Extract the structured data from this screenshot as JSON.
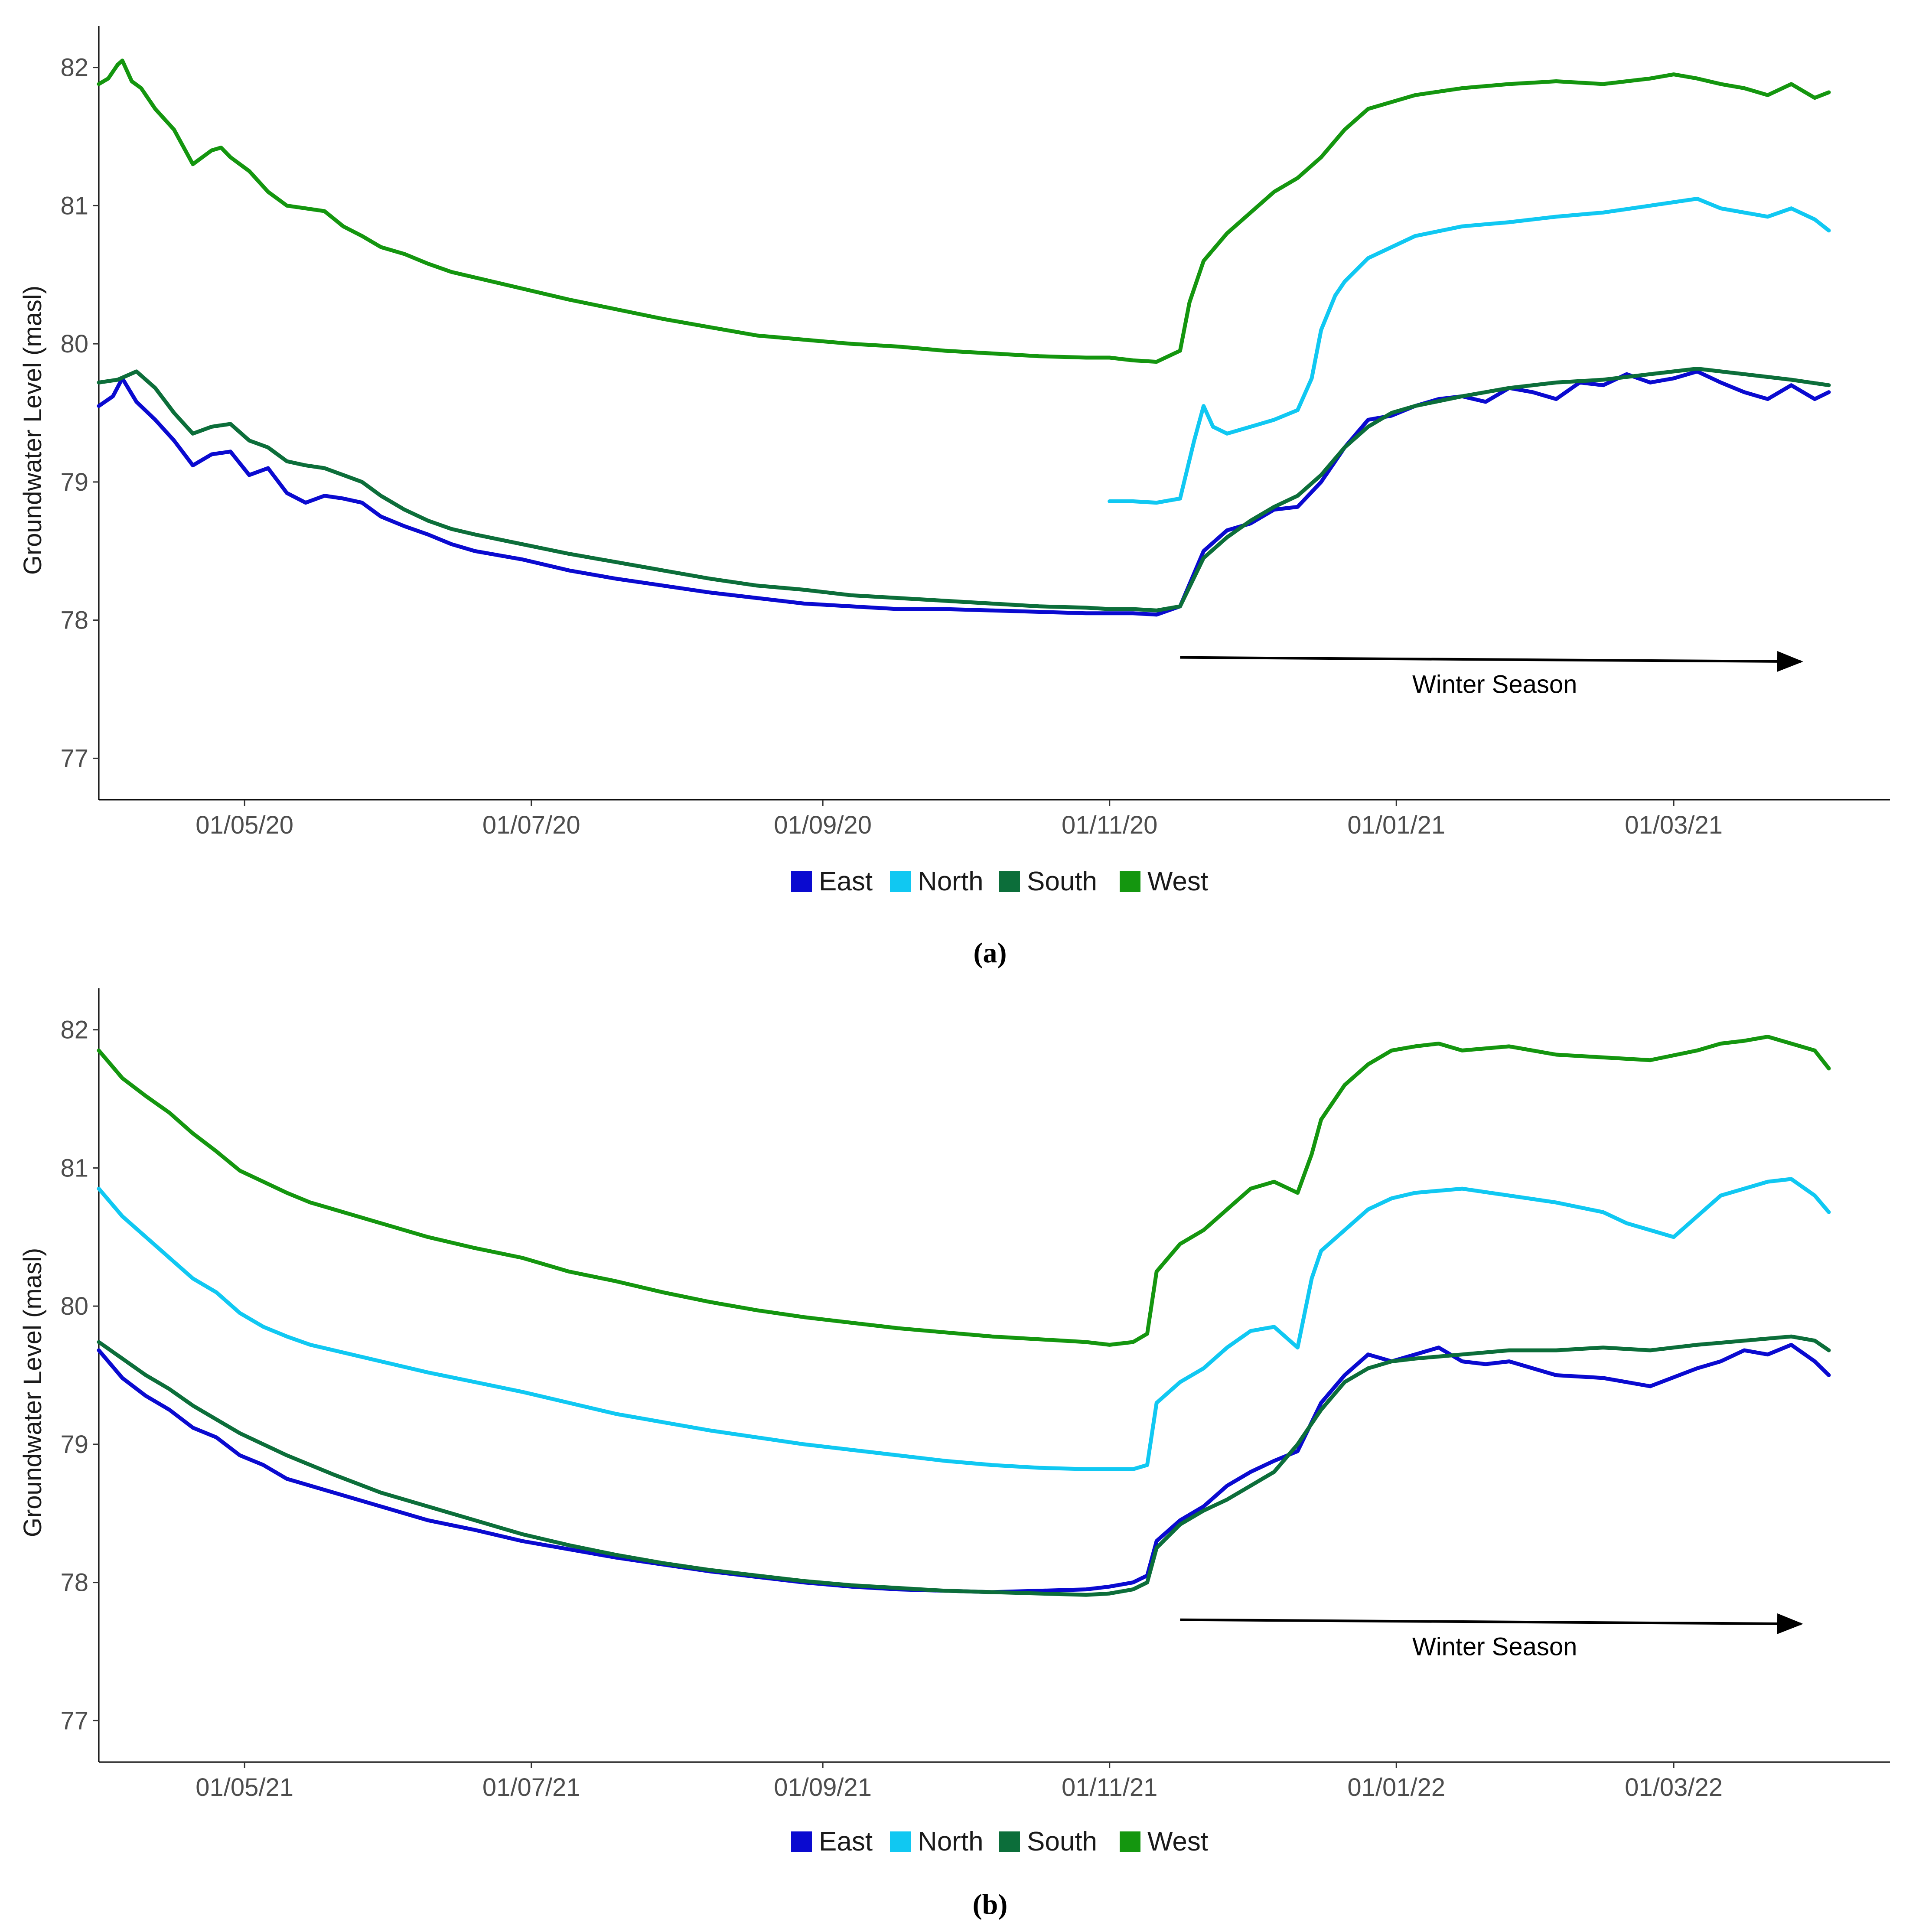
{
  "chart_data": [
    {
      "type": "line",
      "panel_label": "(a)",
      "ylabel": "Groundwater Level (masl)",
      "xlabel": "",
      "ylim": [
        76.7,
        82.3
      ],
      "yticks": [
        77,
        78,
        79,
        80,
        81,
        82
      ],
      "x_domain_days": [
        0,
        381
      ],
      "xticks": [
        {
          "day": 31,
          "label": "01/05/20"
        },
        {
          "day": 92,
          "label": "01/07/20"
        },
        {
          "day": 154,
          "label": "01/09/20"
        },
        {
          "day": 215,
          "label": "01/11/20"
        },
        {
          "day": 276,
          "label": "01/01/21"
        },
        {
          "day": 335,
          "label": "01/03/21"
        }
      ],
      "annotation": {
        "text": "Winter Season",
        "from_day": 230,
        "to_day": 362,
        "y_start": 77.73,
        "y_end": 77.7
      },
      "series": [
        {
          "name": "East",
          "color": "#0a0ad0",
          "x": [
            0,
            3,
            5,
            8,
            12,
            16,
            20,
            24,
            28,
            32,
            36,
            40,
            44,
            48,
            52,
            56,
            60,
            65,
            70,
            75,
            80,
            90,
            100,
            110,
            120,
            130,
            140,
            150,
            160,
            170,
            180,
            190,
            200,
            210,
            215,
            220,
            225,
            230,
            235,
            240,
            245,
            250,
            255,
            260,
            265,
            270,
            275,
            280,
            285,
            290,
            295,
            300,
            305,
            310,
            315,
            320,
            325,
            330,
            335,
            340,
            345,
            350,
            355,
            360,
            365,
            368
          ],
          "values": [
            79.55,
            79.62,
            79.75,
            79.58,
            79.45,
            79.3,
            79.12,
            79.2,
            79.22,
            79.05,
            79.1,
            78.92,
            78.85,
            78.9,
            78.88,
            78.85,
            78.75,
            78.68,
            78.62,
            78.55,
            78.5,
            78.44,
            78.36,
            78.3,
            78.25,
            78.2,
            78.16,
            78.12,
            78.1,
            78.08,
            78.08,
            78.07,
            78.06,
            78.05,
            78.05,
            78.05,
            78.04,
            78.1,
            78.5,
            78.65,
            78.7,
            78.8,
            78.82,
            79.0,
            79.25,
            79.45,
            79.48,
            79.55,
            79.6,
            79.62,
            79.58,
            79.68,
            79.65,
            79.6,
            79.72,
            79.7,
            79.78,
            79.72,
            79.75,
            79.8,
            79.72,
            79.65,
            79.6,
            79.7,
            79.6,
            79.65
          ]
        },
        {
          "name": "North",
          "color": "#10c8f2",
          "x": [
            215,
            220,
            225,
            230,
            233,
            235,
            237,
            240,
            245,
            250,
            255,
            258,
            260,
            263,
            265,
            270,
            275,
            280,
            290,
            300,
            310,
            320,
            330,
            340,
            345,
            350,
            355,
            360,
            365,
            368
          ],
          "values": [
            78.86,
            78.86,
            78.85,
            78.88,
            79.3,
            79.55,
            79.4,
            79.35,
            79.4,
            79.45,
            79.52,
            79.75,
            80.1,
            80.35,
            80.45,
            80.62,
            80.7,
            80.78,
            80.85,
            80.88,
            80.92,
            80.95,
            81.0,
            81.05,
            80.98,
            80.95,
            80.92,
            80.98,
            80.9,
            80.82
          ]
        },
        {
          "name": "South",
          "color": "#0c6e3a",
          "x": [
            0,
            4,
            8,
            12,
            16,
            20,
            24,
            28,
            32,
            36,
            40,
            44,
            48,
            52,
            56,
            60,
            65,
            70,
            75,
            80,
            90,
            100,
            110,
            120,
            130,
            140,
            150,
            160,
            170,
            180,
            190,
            200,
            210,
            215,
            220,
            225,
            230,
            235,
            240,
            245,
            250,
            255,
            260,
            265,
            270,
            275,
            280,
            290,
            300,
            310,
            320,
            330,
            340,
            350,
            360,
            368
          ],
          "values": [
            79.72,
            79.74,
            79.8,
            79.68,
            79.5,
            79.35,
            79.4,
            79.42,
            79.3,
            79.25,
            79.15,
            79.12,
            79.1,
            79.05,
            79.0,
            78.9,
            78.8,
            78.72,
            78.66,
            78.62,
            78.55,
            78.48,
            78.42,
            78.36,
            78.3,
            78.25,
            78.22,
            78.18,
            78.16,
            78.14,
            78.12,
            78.1,
            78.09,
            78.08,
            78.08,
            78.07,
            78.1,
            78.45,
            78.6,
            78.72,
            78.82,
            78.9,
            79.05,
            79.25,
            79.4,
            79.5,
            79.55,
            79.62,
            79.68,
            79.72,
            79.74,
            79.78,
            79.82,
            79.78,
            79.74,
            79.7
          ]
        },
        {
          "name": "West",
          "color": "#14960f",
          "x": [
            0,
            2,
            4,
            5,
            7,
            9,
            12,
            16,
            20,
            24,
            26,
            28,
            32,
            36,
            40,
            44,
            48,
            52,
            56,
            60,
            65,
            70,
            75,
            80,
            90,
            100,
            110,
            120,
            130,
            140,
            150,
            160,
            170,
            180,
            190,
            200,
            210,
            215,
            220,
            225,
            230,
            232,
            235,
            240,
            245,
            250,
            255,
            260,
            265,
            270,
            275,
            280,
            290,
            300,
            310,
            320,
            330,
            335,
            340,
            345,
            350,
            355,
            360,
            365,
            368
          ],
          "values": [
            81.88,
            81.92,
            82.02,
            82.05,
            81.9,
            81.85,
            81.7,
            81.55,
            81.3,
            81.4,
            81.42,
            81.35,
            81.25,
            81.1,
            81.0,
            80.98,
            80.96,
            80.85,
            80.78,
            80.7,
            80.65,
            80.58,
            80.52,
            80.48,
            80.4,
            80.32,
            80.25,
            80.18,
            80.12,
            80.06,
            80.03,
            80.0,
            79.98,
            79.95,
            79.93,
            79.91,
            79.9,
            79.9,
            79.88,
            79.87,
            79.95,
            80.3,
            80.6,
            80.8,
            80.95,
            81.1,
            81.2,
            81.35,
            81.55,
            81.7,
            81.75,
            81.8,
            81.85,
            81.88,
            81.9,
            81.88,
            81.92,
            81.95,
            81.92,
            81.88,
            81.85,
            81.8,
            81.88,
            81.78,
            81.82
          ]
        }
      ]
    },
    {
      "type": "line",
      "panel_label": "(b)",
      "ylabel": "Groundwater Level (masl)",
      "xlabel": "",
      "ylim": [
        76.7,
        82.3
      ],
      "yticks": [
        77,
        78,
        79,
        80,
        81,
        82
      ],
      "x_domain_days": [
        0,
        381
      ],
      "xticks": [
        {
          "day": 31,
          "label": "01/05/21"
        },
        {
          "day": 92,
          "label": "01/07/21"
        },
        {
          "day": 154,
          "label": "01/09/21"
        },
        {
          "day": 215,
          "label": "01/11/21"
        },
        {
          "day": 276,
          "label": "01/01/22"
        },
        {
          "day": 335,
          "label": "01/03/22"
        }
      ],
      "annotation": {
        "text": "Winter Season",
        "from_day": 230,
        "to_day": 362,
        "y_start": 77.73,
        "y_end": 77.7
      },
      "series": [
        {
          "name": "East",
          "color": "#0a0ad0",
          "x": [
            0,
            5,
            10,
            15,
            20,
            25,
            30,
            35,
            40,
            45,
            50,
            60,
            70,
            80,
            90,
            100,
            110,
            120,
            130,
            140,
            150,
            160,
            170,
            180,
            190,
            200,
            210,
            215,
            220,
            223,
            225,
            230,
            235,
            240,
            245,
            250,
            255,
            260,
            265,
            270,
            275,
            280,
            285,
            290,
            295,
            300,
            310,
            320,
            330,
            340,
            345,
            350,
            355,
            360,
            365,
            368
          ],
          "values": [
            79.68,
            79.48,
            79.35,
            79.25,
            79.12,
            79.05,
            78.92,
            78.85,
            78.75,
            78.7,
            78.65,
            78.55,
            78.45,
            78.38,
            78.3,
            78.24,
            78.18,
            78.13,
            78.08,
            78.04,
            78.0,
            77.97,
            77.95,
            77.94,
            77.93,
            77.94,
            77.95,
            77.97,
            78.0,
            78.05,
            78.3,
            78.45,
            78.55,
            78.7,
            78.8,
            78.88,
            78.95,
            79.3,
            79.5,
            79.65,
            79.6,
            79.65,
            79.7,
            79.6,
            79.58,
            79.6,
            79.5,
            79.48,
            79.42,
            79.55,
            79.6,
            79.68,
            79.65,
            79.72,
            79.6,
            79.5
          ]
        },
        {
          "name": "North",
          "color": "#10c8f2",
          "x": [
            0,
            5,
            10,
            15,
            20,
            25,
            30,
            35,
            40,
            45,
            50,
            60,
            70,
            80,
            90,
            100,
            110,
            120,
            130,
            140,
            150,
            160,
            170,
            180,
            190,
            200,
            210,
            215,
            220,
            223,
            225,
            230,
            235,
            240,
            245,
            250,
            255,
            258,
            260,
            265,
            270,
            275,
            280,
            290,
            300,
            310,
            320,
            325,
            330,
            335,
            340,
            345,
            350,
            355,
            360,
            365,
            368
          ],
          "values": [
            80.85,
            80.65,
            80.5,
            80.35,
            80.2,
            80.1,
            79.95,
            79.85,
            79.78,
            79.72,
            79.68,
            79.6,
            79.52,
            79.45,
            79.38,
            79.3,
            79.22,
            79.16,
            79.1,
            79.05,
            79.0,
            78.96,
            78.92,
            78.88,
            78.85,
            78.83,
            78.82,
            78.82,
            78.82,
            78.85,
            79.3,
            79.45,
            79.55,
            79.7,
            79.82,
            79.85,
            79.7,
            80.2,
            80.4,
            80.55,
            80.7,
            80.78,
            80.82,
            80.85,
            80.8,
            80.75,
            80.68,
            80.6,
            80.55,
            80.5,
            80.65,
            80.8,
            80.85,
            80.9,
            80.92,
            80.8,
            80.68
          ]
        },
        {
          "name": "South",
          "color": "#0c6e3a",
          "x": [
            0,
            5,
            10,
            15,
            20,
            25,
            30,
            35,
            40,
            45,
            50,
            60,
            70,
            80,
            90,
            100,
            110,
            120,
            130,
            140,
            150,
            160,
            170,
            180,
            190,
            200,
            210,
            215,
            220,
            223,
            225,
            230,
            235,
            240,
            245,
            250,
            255,
            260,
            265,
            270,
            275,
            280,
            290,
            300,
            310,
            320,
            330,
            340,
            350,
            360,
            365,
            368
          ],
          "values": [
            79.74,
            79.62,
            79.5,
            79.4,
            79.28,
            79.18,
            79.08,
            79.0,
            78.92,
            78.85,
            78.78,
            78.65,
            78.55,
            78.45,
            78.35,
            78.27,
            78.2,
            78.14,
            78.09,
            78.05,
            78.01,
            77.98,
            77.96,
            77.94,
            77.93,
            77.92,
            77.91,
            77.92,
            77.95,
            78.0,
            78.25,
            78.42,
            78.52,
            78.6,
            78.7,
            78.8,
            79.0,
            79.25,
            79.45,
            79.55,
            79.6,
            79.62,
            79.65,
            79.68,
            79.68,
            79.7,
            79.68,
            79.72,
            79.75,
            79.78,
            79.75,
            79.68
          ]
        },
        {
          "name": "West",
          "color": "#14960f",
          "x": [
            0,
            5,
            10,
            15,
            20,
            25,
            30,
            35,
            40,
            45,
            50,
            60,
            70,
            80,
            90,
            100,
            110,
            120,
            130,
            140,
            150,
            160,
            170,
            180,
            190,
            200,
            210,
            215,
            220,
            223,
            225,
            230,
            235,
            240,
            245,
            250,
            255,
            258,
            260,
            265,
            270,
            275,
            280,
            285,
            290,
            300,
            310,
            320,
            330,
            340,
            345,
            350,
            355,
            360,
            365,
            368
          ],
          "values": [
            81.85,
            81.65,
            81.52,
            81.4,
            81.25,
            81.12,
            80.98,
            80.9,
            80.82,
            80.75,
            80.7,
            80.6,
            80.5,
            80.42,
            80.35,
            80.25,
            80.18,
            80.1,
            80.03,
            79.97,
            79.92,
            79.88,
            79.84,
            79.81,
            79.78,
            79.76,
            79.74,
            79.72,
            79.74,
            79.8,
            80.25,
            80.45,
            80.55,
            80.7,
            80.85,
            80.9,
            80.82,
            81.1,
            81.35,
            81.6,
            81.75,
            81.85,
            81.88,
            81.9,
            81.85,
            81.88,
            81.82,
            81.8,
            81.78,
            81.85,
            81.9,
            81.92,
            81.95,
            81.9,
            81.85,
            81.72
          ]
        }
      ]
    }
  ]
}
